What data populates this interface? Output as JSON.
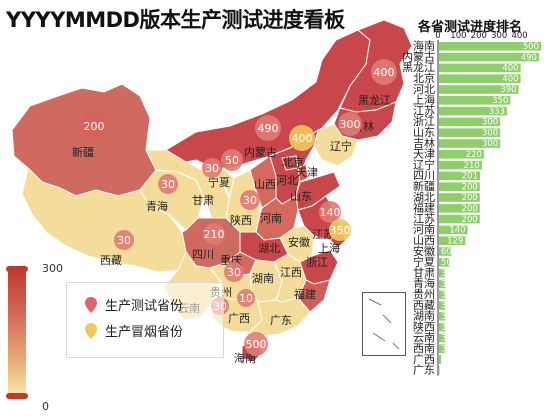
{
  "title": "YYYYMMDD版本生产测试进度看板",
  "map": {
    "provinces": [
      {
        "name": "新疆"
      },
      {
        "name": "西藏"
      },
      {
        "name": "青海"
      },
      {
        "name": "甘肃"
      },
      {
        "name": "内蒙古"
      },
      {
        "name": "宁夏"
      },
      {
        "name": "陕西"
      },
      {
        "name": "山西"
      },
      {
        "name": "河北"
      },
      {
        "name": "北京"
      },
      {
        "name": "天津"
      },
      {
        "name": "辽宁"
      },
      {
        "name": "吉林"
      },
      {
        "name": "黑龙江"
      },
      {
        "name": "山东"
      },
      {
        "name": "河南"
      },
      {
        "name": "江苏"
      },
      {
        "name": "上海"
      },
      {
        "name": "安徽"
      },
      {
        "name": "湖北"
      },
      {
        "name": "四川"
      },
      {
        "name": "重庆"
      },
      {
        "name": "云南"
      },
      {
        "name": "贵州"
      },
      {
        "name": "湖南"
      },
      {
        "name": "江西"
      },
      {
        "name": "浙江"
      },
      {
        "name": "福建"
      },
      {
        "name": "广西"
      },
      {
        "name": "广东"
      },
      {
        "name": "海南"
      }
    ],
    "pins_test": [
      "200",
      "490",
      "400",
      "300",
      "50",
      "30",
      "30",
      "30",
      "140",
      "210",
      "30",
      "30",
      "10",
      "500",
      "30"
    ],
    "pins_tobacco": [
      "400",
      "350"
    ]
  },
  "scale": {
    "max_label": "300",
    "min_label": "0",
    "low_color": "#f7e9a8",
    "high_color": "#c0392b"
  },
  "legend": {
    "items": [
      {
        "label": "生产测试省份",
        "color": "#e06666"
      },
      {
        "label": "生产冒烟省份",
        "color": "#f2c65b"
      }
    ]
  },
  "ranking": {
    "title": "各省测试进度排名",
    "axis_ticks": [
      "0",
      "100",
      "200",
      "300",
      "400"
    ],
    "bar_color": "#8fcf6b",
    "bars": [
      {
        "province": "海南",
        "value": 500
      },
      {
        "province": "内蒙古",
        "value": 490
      },
      {
        "province": "黑龙江",
        "value": 400
      },
      {
        "province": "北京",
        "value": 400
      },
      {
        "province": "河北",
        "value": 390
      },
      {
        "province": "上海",
        "value": 350
      },
      {
        "province": "江苏",
        "value": 333
      },
      {
        "province": "浙江",
        "value": 300
      },
      {
        "province": "山东",
        "value": 300
      },
      {
        "province": "吉林",
        "value": 300
      },
      {
        "province": "天津",
        "value": 220
      },
      {
        "province": "辽宁",
        "value": 210
      },
      {
        "province": "四川",
        "value": 201
      },
      {
        "province": "新疆",
        "value": 200
      },
      {
        "province": "湖北",
        "value": 200
      },
      {
        "province": "福建",
        "value": 200
      },
      {
        "province": "江苏",
        "value": 200
      },
      {
        "province": "河南",
        "value": 140
      },
      {
        "province": "山西",
        "value": 129
      },
      {
        "province": "安徽",
        "value": 60
      },
      {
        "province": "宁夏",
        "value": 50
      },
      {
        "province": "甘肃",
        "value": 30
      },
      {
        "province": "青海",
        "value": 30
      },
      {
        "province": "贵州",
        "value": 30
      },
      {
        "province": "西藏",
        "value": 30
      },
      {
        "province": "湖南",
        "value": 30
      },
      {
        "province": "陕西",
        "value": 30
      },
      {
        "province": "云南",
        "value": 30
      },
      {
        "province": "西南",
        "value": 30
      },
      {
        "province": "广西",
        "value": 10
      },
      {
        "province": "广东",
        "value": 1
      }
    ]
  }
}
